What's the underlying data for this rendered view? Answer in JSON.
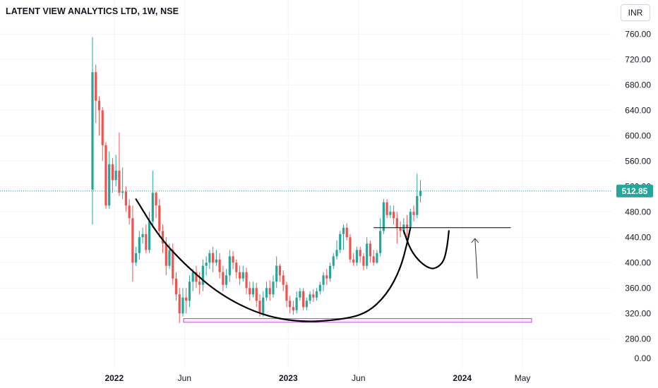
{
  "header": {
    "title": "LATENT VIEW ANALYTICS LTD, 1W, NSE",
    "currency": "INR"
  },
  "colors": {
    "up": "#26a69a",
    "down": "#ef5350",
    "last_price": "#26a69a",
    "drawing": "#000000",
    "support_box": "#c04fd8"
  },
  "chart_data": {
    "type": "candlestick",
    "title": "LATENT VIEW ANALYTICS LTD, 1W, NSE",
    "ylim": [
      270,
      780
    ],
    "y_ticks": [
      760,
      720,
      680,
      640,
      600,
      560,
      520,
      480,
      440,
      400,
      360,
      320,
      280
    ],
    "y_tick_labels": [
      "760.00",
      "720.00",
      "680.00",
      "640.00",
      "600.00",
      "560.00",
      "520.00",
      "480.00",
      "440.00",
      "400.00",
      "360.00",
      "320.00",
      "280.00"
    ],
    "y_zero_label": "0.00",
    "x_ticks": [
      {
        "label": "2022",
        "week": 6.5,
        "bold": true
      },
      {
        "label": "Jun",
        "week": 27.5,
        "bold": false
      },
      {
        "label": "2023",
        "week": 58.5,
        "bold": true
      },
      {
        "label": "Jun",
        "week": 79.5,
        "bold": false
      },
      {
        "label": "2024",
        "week": 110.5,
        "bold": true
      },
      {
        "label": "May",
        "week": 128.5,
        "bold": false
      }
    ],
    "last_price": 512.85,
    "last_price_label": "512.85",
    "grid": true,
    "candles": [
      [
        515,
        700,
        755,
        460
      ],
      [
        700,
        655,
        712,
        620
      ],
      [
        655,
        640,
        662,
        600
      ],
      [
        640,
        585,
        645,
        560
      ],
      [
        585,
        490,
        590,
        485
      ],
      [
        490,
        555,
        575,
        485
      ],
      [
        555,
        530,
        565,
        510
      ],
      [
        530,
        545,
        570,
        520
      ],
      [
        545,
        510,
        605,
        505
      ],
      [
        510,
        512,
        550,
        500
      ],
      [
        512,
        490,
        520,
        480
      ],
      [
        490,
        470,
        500,
        460
      ],
      [
        470,
        400,
        490,
        370
      ],
      [
        400,
        415,
        425,
        395
      ],
      [
        415,
        440,
        450,
        405
      ],
      [
        440,
        445,
        455,
        430
      ],
      [
        445,
        420,
        460,
        415
      ],
      [
        420,
        465,
        480,
        415
      ],
      [
        465,
        510,
        545,
        455
      ],
      [
        510,
        490,
        512,
        470
      ],
      [
        490,
        450,
        500,
        440
      ],
      [
        450,
        430,
        460,
        415
      ],
      [
        430,
        395,
        440,
        380
      ],
      [
        395,
        420,
        430,
        390
      ],
      [
        420,
        375,
        430,
        365
      ],
      [
        375,
        350,
        385,
        340
      ],
      [
        350,
        320,
        360,
        305
      ],
      [
        320,
        345,
        360,
        315
      ],
      [
        345,
        340,
        360,
        320
      ],
      [
        340,
        370,
        380,
        330
      ],
      [
        370,
        385,
        390,
        355
      ],
      [
        385,
        370,
        395,
        360
      ],
      [
        370,
        365,
        385,
        350
      ],
      [
        365,
        395,
        405,
        355
      ],
      [
        395,
        400,
        410,
        380
      ],
      [
        400,
        415,
        420,
        390
      ],
      [
        415,
        400,
        425,
        385
      ],
      [
        400,
        405,
        420,
        395
      ],
      [
        405,
        385,
        415,
        375
      ],
      [
        385,
        365,
        395,
        355
      ],
      [
        365,
        380,
        390,
        360
      ],
      [
        380,
        410,
        420,
        370
      ],
      [
        410,
        400,
        418,
        390
      ],
      [
        400,
        385,
        405,
        375
      ],
      [
        385,
        375,
        395,
        365
      ],
      [
        375,
        385,
        395,
        370
      ],
      [
        385,
        360,
        392,
        350
      ],
      [
        360,
        350,
        370,
        340
      ],
      [
        350,
        360,
        370,
        345
      ],
      [
        360,
        340,
        368,
        330
      ],
      [
        340,
        320,
        350,
        315
      ],
      [
        320,
        345,
        355,
        315
      ],
      [
        345,
        360,
        370,
        340
      ],
      [
        360,
        350,
        372,
        340
      ],
      [
        350,
        370,
        380,
        345
      ],
      [
        370,
        395,
        410,
        360
      ],
      [
        395,
        380,
        398,
        370
      ],
      [
        380,
        365,
        388,
        355
      ],
      [
        365,
        340,
        370,
        330
      ],
      [
        340,
        330,
        348,
        320
      ],
      [
        330,
        325,
        340,
        318
      ],
      [
        325,
        345,
        355,
        320
      ],
      [
        345,
        355,
        360,
        340
      ],
      [
        355,
        330,
        360,
        325
      ],
      [
        330,
        340,
        345,
        325
      ],
      [
        340,
        350,
        355,
        335
      ],
      [
        350,
        345,
        358,
        338
      ],
      [
        345,
        355,
        360,
        340
      ],
      [
        355,
        365,
        370,
        350
      ],
      [
        365,
        380,
        385,
        355
      ],
      [
        380,
        375,
        390,
        365
      ],
      [
        375,
        395,
        400,
        370
      ],
      [
        395,
        410,
        415,
        390
      ],
      [
        410,
        420,
        435,
        405
      ],
      [
        420,
        445,
        450,
        415
      ],
      [
        445,
        455,
        460,
        420
      ],
      [
        455,
        440,
        462,
        435
      ],
      [
        440,
        405,
        445,
        400
      ],
      [
        405,
        400,
        415,
        395
      ],
      [
        400,
        420,
        425,
        395
      ],
      [
        420,
        410,
        425,
        400
      ],
      [
        410,
        395,
        415,
        388
      ],
      [
        395,
        430,
        440,
        390
      ],
      [
        430,
        410,
        435,
        400
      ],
      [
        410,
        400,
        420,
        395
      ],
      [
        400,
        415,
        420,
        398
      ],
      [
        415,
        450,
        470,
        410
      ],
      [
        450,
        495,
        500,
        445
      ],
      [
        495,
        475,
        500,
        470
      ],
      [
        475,
        480,
        490,
        470
      ],
      [
        480,
        470,
        490,
        460
      ],
      [
        470,
        455,
        480,
        430
      ],
      [
        455,
        450,
        465,
        440
      ],
      [
        450,
        460,
        470,
        445
      ],
      [
        460,
        455,
        475,
        440
      ],
      [
        455,
        480,
        485,
        450
      ],
      [
        480,
        475,
        490,
        465
      ],
      [
        475,
        505,
        540,
        470
      ],
      [
        505,
        513,
        530,
        495
      ]
    ]
  }
}
